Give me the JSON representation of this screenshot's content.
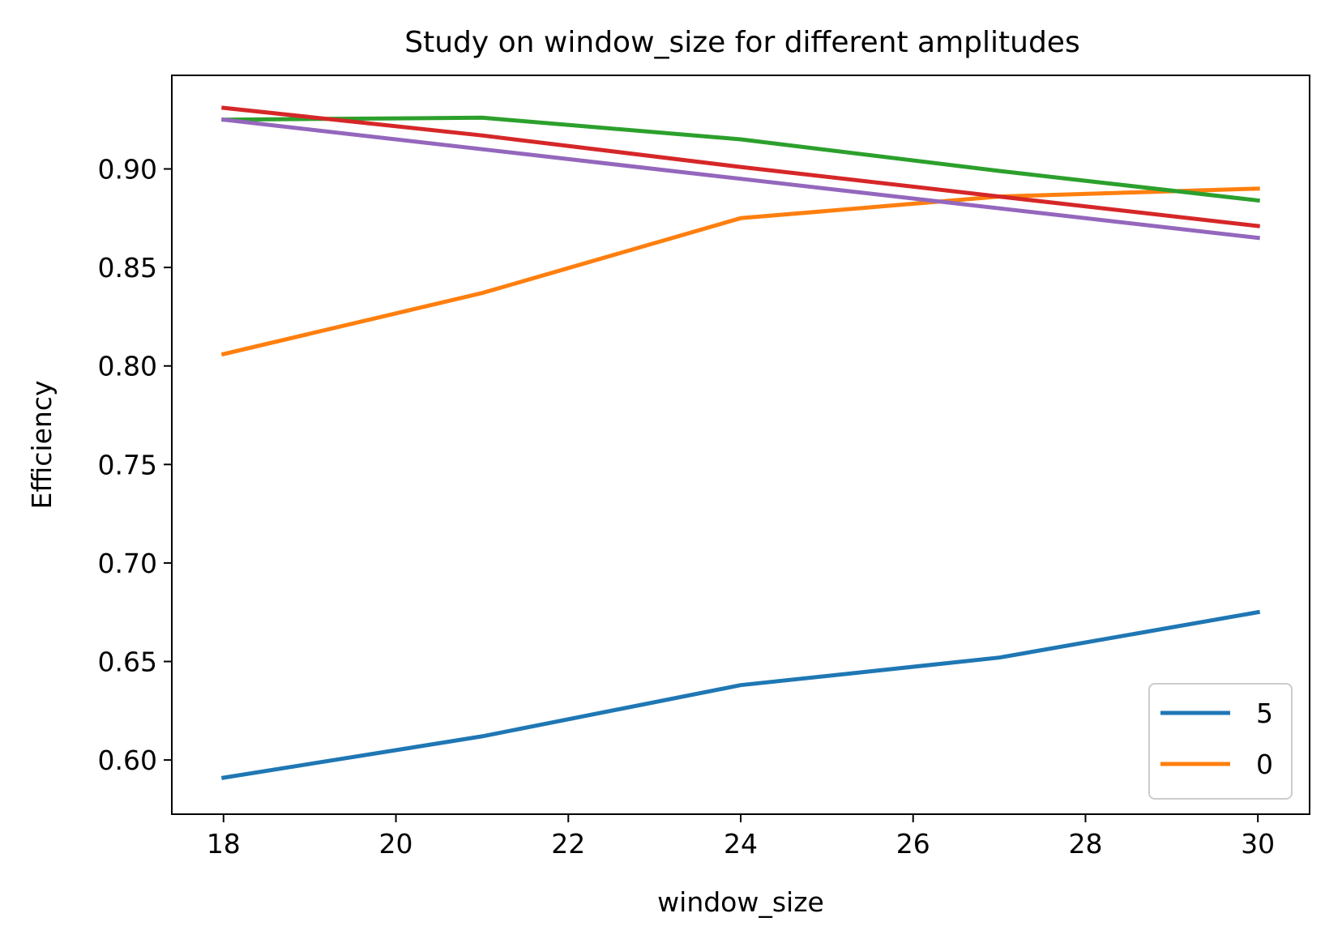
{
  "chart_data": {
    "type": "line",
    "title": "Study on window_size for different amplitudes",
    "xlabel": "window_size",
    "ylabel": "Efficiency",
    "xlim": [
      17.4,
      30.6
    ],
    "ylim": [
      0.5725,
      0.9475
    ],
    "xticks": [
      18,
      20,
      22,
      24,
      26,
      28,
      30
    ],
    "xtick_labels": [
      "18",
      "20",
      "22",
      "24",
      "26",
      "28",
      "30"
    ],
    "yticks": [
      0.6,
      0.65,
      0.7,
      0.75,
      0.8,
      0.85,
      0.9
    ],
    "ytick_labels": [
      "0.60",
      "0.65",
      "0.70",
      "0.75",
      "0.80",
      "0.85",
      "0.90"
    ],
    "grid": false,
    "legend_position": "lower right",
    "x": [
      18,
      21,
      24,
      27,
      30
    ],
    "series": [
      {
        "name": "5",
        "color": "#1f77b4",
        "values": [
          0.591,
          0.612,
          0.638,
          0.652,
          0.675
        ]
      },
      {
        "name": "0",
        "color": "#ff7f0e",
        "values": [
          0.806,
          0.837,
          0.875,
          0.886,
          0.89
        ]
      },
      {
        "color": "#2ca02c",
        "values": [
          0.925,
          0.926,
          0.915,
          0.899,
          0.884
        ]
      },
      {
        "color": "#d62728",
        "values": [
          0.931,
          0.917,
          0.901,
          0.886,
          0.871
        ]
      },
      {
        "color": "#9467bd",
        "values": [
          0.925,
          0.91,
          0.895,
          0.88,
          0.865
        ]
      }
    ]
  }
}
